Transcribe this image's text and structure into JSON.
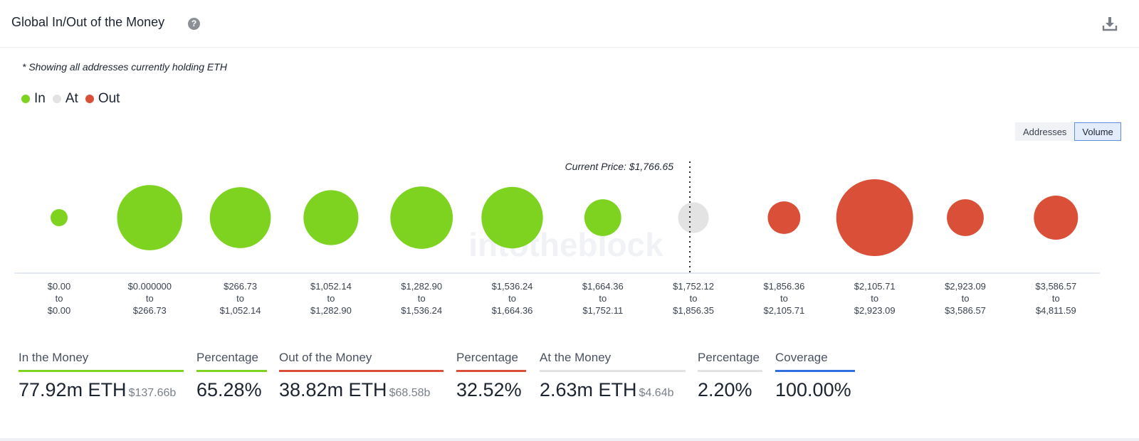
{
  "header": {
    "title": "Global In/Out of the Money",
    "help_icon": "question-circle-icon",
    "download_icon": "download-icon"
  },
  "note": "* Showing all addresses currently holding ETH",
  "legend": [
    {
      "label": "In",
      "color": "#7ed321"
    },
    {
      "label": "At",
      "color": "#e3e3e3"
    },
    {
      "label": "Out",
      "color": "#d94f38"
    }
  ],
  "toggle": {
    "addresses_label": "Addresses",
    "volume_label": "Volume",
    "selected": "Volume"
  },
  "chart_data": {
    "type": "bubble",
    "current_price_label": "Current Price: $1,766.65",
    "current_price_after_bucket": 7,
    "watermark": "intotheblock",
    "buckets": [
      {
        "from": "$0.00",
        "to": "$0.00",
        "status": "in",
        "relative_volume": 0.03
      },
      {
        "from": "$0.000000",
        "to": "$266.73",
        "status": "in",
        "relative_volume": 0.72
      },
      {
        "from": "$266.73",
        "to": "$1,052.14",
        "status": "in",
        "relative_volume": 0.63
      },
      {
        "from": "$1,052.14",
        "to": "$1,282.90",
        "status": "in",
        "relative_volume": 0.51
      },
      {
        "from": "$1,282.90",
        "to": "$1,536.24",
        "status": "in",
        "relative_volume": 0.66
      },
      {
        "from": "$1,536.24",
        "to": "$1,664.36",
        "status": "in",
        "relative_volume": 0.64
      },
      {
        "from": "$1,664.36",
        "to": "$1,752.11",
        "status": "in",
        "relative_volume": 0.23
      },
      {
        "from": "$1,752.12",
        "to": "$1,856.35",
        "status": "at",
        "relative_volume": 0.16
      },
      {
        "from": "$1,856.36",
        "to": "$2,105.71",
        "status": "out",
        "relative_volume": 0.18
      },
      {
        "from": "$2,105.71",
        "to": "$2,923.09",
        "status": "out",
        "relative_volume": 1.0
      },
      {
        "from": "$2,923.09",
        "to": "$3,586.57",
        "status": "out",
        "relative_volume": 0.23
      },
      {
        "from": "$3,586.57",
        "to": "$4,811.59",
        "status": "out",
        "relative_volume": 0.33
      }
    ],
    "to_word": "to"
  },
  "stats": {
    "in_money": {
      "label": "In the Money",
      "value": "77.92m ETH",
      "sub": "$137.66b",
      "color": "#7ed321"
    },
    "in_pct": {
      "label": "Percentage",
      "value": "65.28%",
      "color": "#7ed321"
    },
    "out_money": {
      "label": "Out of the Money",
      "value": "38.82m ETH",
      "sub": "$68.58b",
      "color": "#d94f38"
    },
    "out_pct": {
      "label": "Percentage",
      "value": "32.52%",
      "color": "#d94f38"
    },
    "at_money": {
      "label": "At the Money",
      "value": "2.63m ETH",
      "sub": "$4.64b",
      "color": "#e3e3e3"
    },
    "at_pct": {
      "label": "Percentage",
      "value": "2.20%",
      "color": "#e3e3e3"
    },
    "coverage": {
      "label": "Coverage",
      "value": "100.00%",
      "color": "#2f6fe0"
    }
  }
}
